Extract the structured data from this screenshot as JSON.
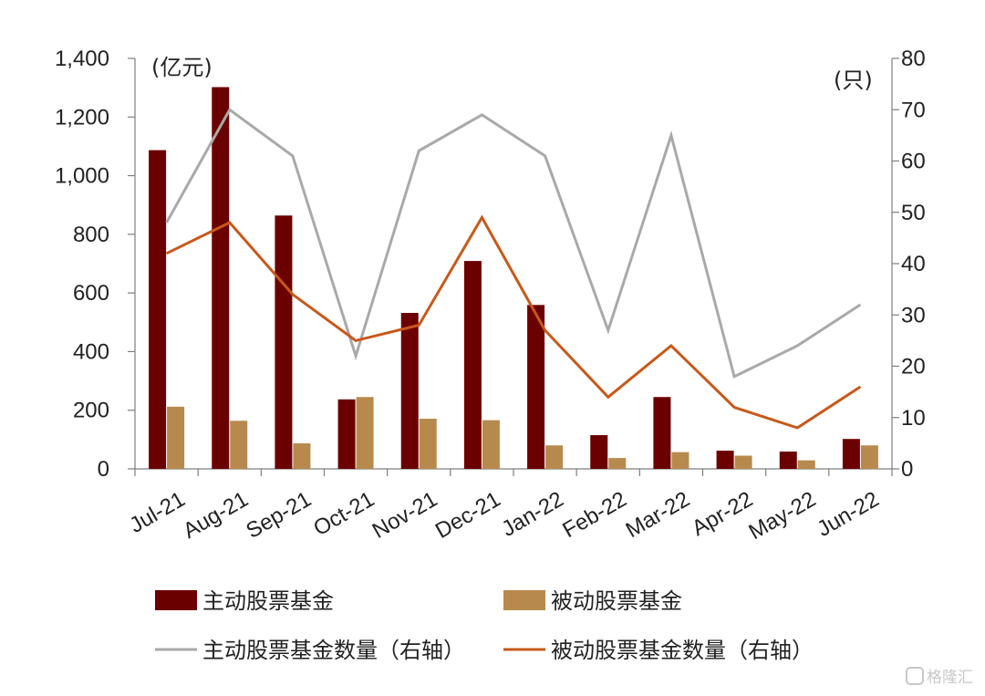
{
  "chart_data": {
    "type": "bar",
    "categories": [
      "Jul-21",
      "Aug-21",
      "Sep-21",
      "Oct-21",
      "Nov-21",
      "Dec-21",
      "Jan-22",
      "Feb-22",
      "Mar-22",
      "Apr-22",
      "May-22",
      "Jun-22"
    ],
    "series": [
      {
        "name": "主动股票基金",
        "kind": "bar",
        "axis": "left",
        "color": "#6b0000",
        "values": [
          1087,
          1302,
          864,
          237,
          532,
          709,
          559,
          115,
          245,
          62,
          59,
          102
        ]
      },
      {
        "name": "被动股票基金",
        "kind": "bar",
        "axis": "left",
        "color": "#b8894d",
        "values": [
          212,
          164,
          87,
          245,
          171,
          166,
          80,
          37,
          57,
          45,
          29,
          80
        ]
      },
      {
        "name": "主动股票基金数量（右轴）",
        "kind": "line",
        "axis": "right",
        "color": "#a9a9a9",
        "values": [
          48,
          70,
          61,
          22,
          62,
          69,
          61,
          27,
          65,
          18,
          24,
          32
        ]
      },
      {
        "name": "被动股票基金数量（右轴）",
        "kind": "line",
        "axis": "right",
        "color": "#c8581a",
        "values": [
          42,
          48,
          34,
          25,
          28,
          49,
          27,
          14,
          24,
          12,
          8,
          16
        ]
      }
    ],
    "left_axis": {
      "unit_label": "(亿元)",
      "min": 0,
      "max": 1400,
      "ticks": [
        0,
        200,
        400,
        600,
        800,
        1000,
        1200,
        1400
      ],
      "tick_labels": [
        "0",
        "200",
        "400",
        "600",
        "800",
        "1,000",
        "1,200",
        "1,400"
      ]
    },
    "right_axis": {
      "unit_label": "(只)",
      "min": 0,
      "max": 80,
      "ticks": [
        0,
        10,
        20,
        30,
        40,
        50,
        60,
        70,
        80
      ],
      "tick_labels": [
        "0",
        "10",
        "20",
        "30",
        "40",
        "50",
        "60",
        "70",
        "80"
      ]
    },
    "grid": false,
    "legend_position": "bottom"
  },
  "watermark": {
    "text": "格隆汇"
  }
}
